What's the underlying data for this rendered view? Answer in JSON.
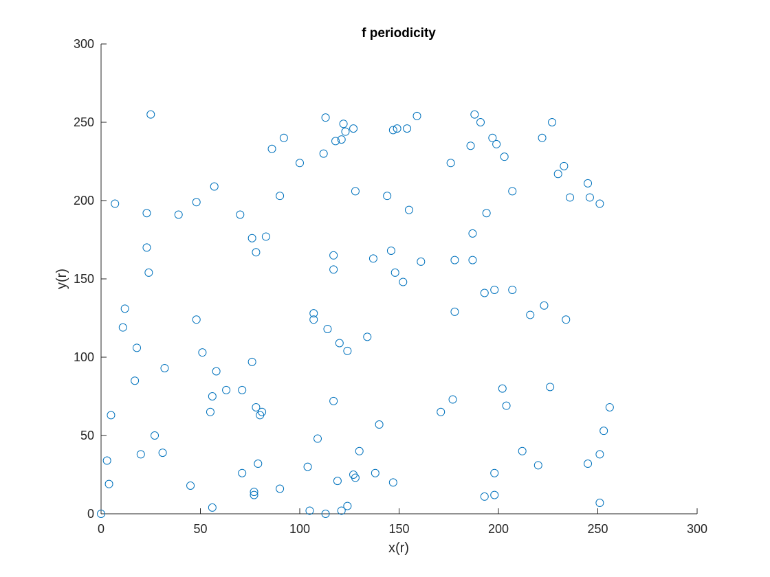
{
  "chart_data": {
    "type": "scatter",
    "title": "f periodicity",
    "xlabel": "x(r)",
    "ylabel": "y(r)",
    "xlim": [
      0,
      300
    ],
    "ylim": [
      0,
      300
    ],
    "xticks": [
      0,
      50,
      100,
      150,
      200,
      250,
      300
    ],
    "yticks": [
      0,
      50,
      100,
      150,
      200,
      250,
      300
    ],
    "grid": false,
    "marker": "circle-open",
    "marker_color": "#0072BD",
    "points": [
      [
        0,
        0
      ],
      [
        3,
        34
      ],
      [
        4,
        19
      ],
      [
        5,
        63
      ],
      [
        7,
        198
      ],
      [
        11,
        119
      ],
      [
        12,
        131
      ],
      [
        17,
        85
      ],
      [
        18,
        106
      ],
      [
        20,
        38
      ],
      [
        23,
        192
      ],
      [
        23,
        170
      ],
      [
        24,
        154
      ],
      [
        25,
        255
      ],
      [
        27,
        50
      ],
      [
        31,
        39
      ],
      [
        32,
        93
      ],
      [
        39,
        191
      ],
      [
        45,
        18
      ],
      [
        48,
        199
      ],
      [
        48,
        124
      ],
      [
        51,
        103
      ],
      [
        55,
        65
      ],
      [
        56,
        75
      ],
      [
        56,
        4
      ],
      [
        57,
        209
      ],
      [
        58,
        91
      ],
      [
        63,
        79
      ],
      [
        70,
        191
      ],
      [
        71,
        79
      ],
      [
        71,
        26
      ],
      [
        76,
        176
      ],
      [
        76,
        97
      ],
      [
        77,
        14
      ],
      [
        77,
        12
      ],
      [
        78,
        167
      ],
      [
        78,
        68
      ],
      [
        79,
        32
      ],
      [
        80,
        63
      ],
      [
        81,
        65
      ],
      [
        83,
        177
      ],
      [
        86,
        233
      ],
      [
        90,
        203
      ],
      [
        90,
        16
      ],
      [
        92,
        240
      ],
      [
        100,
        224
      ],
      [
        104,
        30
      ],
      [
        105,
        2
      ],
      [
        107,
        128
      ],
      [
        107,
        124
      ],
      [
        109,
        48
      ],
      [
        112,
        230
      ],
      [
        113,
        253
      ],
      [
        113,
        0
      ],
      [
        114,
        118
      ],
      [
        117,
        165
      ],
      [
        117,
        156
      ],
      [
        117,
        72
      ],
      [
        118,
        238
      ],
      [
        119,
        21
      ],
      [
        120,
        109
      ],
      [
        121,
        239
      ],
      [
        121,
        2
      ],
      [
        122,
        249
      ],
      [
        123,
        244
      ],
      [
        124,
        104
      ],
      [
        124,
        5
      ],
      [
        127,
        246
      ],
      [
        127,
        25
      ],
      [
        128,
        206
      ],
      [
        128,
        23
      ],
      [
        130,
        40
      ],
      [
        134,
        113
      ],
      [
        137,
        163
      ],
      [
        138,
        26
      ],
      [
        140,
        57
      ],
      [
        144,
        203
      ],
      [
        146,
        168
      ],
      [
        147,
        245
      ],
      [
        147,
        20
      ],
      [
        148,
        154
      ],
      [
        149,
        246
      ],
      [
        152,
        148
      ],
      [
        154,
        246
      ],
      [
        155,
        194
      ],
      [
        159,
        254
      ],
      [
        161,
        161
      ],
      [
        171,
        65
      ],
      [
        176,
        224
      ],
      [
        177,
        73
      ],
      [
        178,
        162
      ],
      [
        178,
        129
      ],
      [
        186,
        235
      ],
      [
        187,
        179
      ],
      [
        187,
        162
      ],
      [
        188,
        255
      ],
      [
        191,
        250
      ],
      [
        193,
        141
      ],
      [
        193,
        11
      ],
      [
        194,
        192
      ],
      [
        197,
        240
      ],
      [
        198,
        143
      ],
      [
        198,
        26
      ],
      [
        198,
        12
      ],
      [
        199,
        236
      ],
      [
        202,
        80
      ],
      [
        203,
        228
      ],
      [
        204,
        69
      ],
      [
        207,
        206
      ],
      [
        207,
        143
      ],
      [
        212,
        40
      ],
      [
        216,
        127
      ],
      [
        220,
        31
      ],
      [
        222,
        240
      ],
      [
        223,
        133
      ],
      [
        226,
        81
      ],
      [
        227,
        250
      ],
      [
        230,
        217
      ],
      [
        233,
        222
      ],
      [
        234,
        124
      ],
      [
        236,
        202
      ],
      [
        245,
        211
      ],
      [
        245,
        32
      ],
      [
        246,
        202
      ],
      [
        251,
        198
      ],
      [
        251,
        38
      ],
      [
        251,
        7
      ],
      [
        253,
        53
      ],
      [
        256,
        68
      ]
    ]
  }
}
